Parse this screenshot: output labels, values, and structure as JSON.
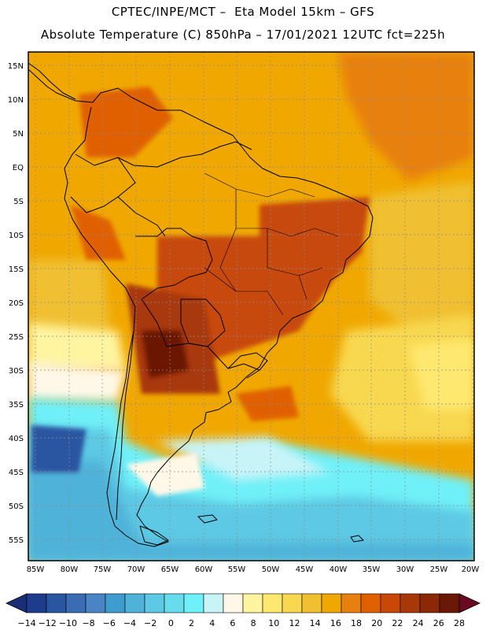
{
  "header": {
    "line1": "CPTEC/INPE/MCT –  Eta Model 15km – GFS",
    "line2": "Absolute Temperature (C) 850hPa – 17/01/2021 12UTC fct=225h"
  },
  "axes": {
    "lat_labels": [
      "15N",
      "10N",
      "5N",
      "EQ",
      "5S",
      "10S",
      "15S",
      "20S",
      "25S",
      "30S",
      "35S",
      "40S",
      "45S",
      "50S",
      "55S"
    ],
    "lon_labels": [
      "85W",
      "80W",
      "75W",
      "70W",
      "65W",
      "60W",
      "55W",
      "50W",
      "45W",
      "40W",
      "35W",
      "30W",
      "25W",
      "20W"
    ]
  },
  "colorbar": {
    "labels": [
      "-14",
      "-12",
      "-10",
      "-8",
      "-6",
      "-4",
      "-2",
      "0",
      "2",
      "4",
      "6",
      "8",
      "10",
      "12",
      "14",
      "16",
      "18",
      "20",
      "22",
      "24",
      "26",
      "28"
    ],
    "colors": [
      "#1e3c8c",
      "#2a55a0",
      "#3a6cb4",
      "#4a84c4",
      "#3f9ccf",
      "#4fb3d9",
      "#5dc9e4",
      "#66dcec",
      "#70f0f8",
      "#c8f4f8",
      "#fff8e8",
      "#fff4a0",
      "#ffe870",
      "#f8d850",
      "#f0c030",
      "#f0a800",
      "#e88010",
      "#e06000",
      "#c84808",
      "#a83808",
      "#8a2808",
      "#6a1806"
    ],
    "low_arrow_color": "#1a2e78",
    "high_arrow_color": "#6a0a20"
  }
}
